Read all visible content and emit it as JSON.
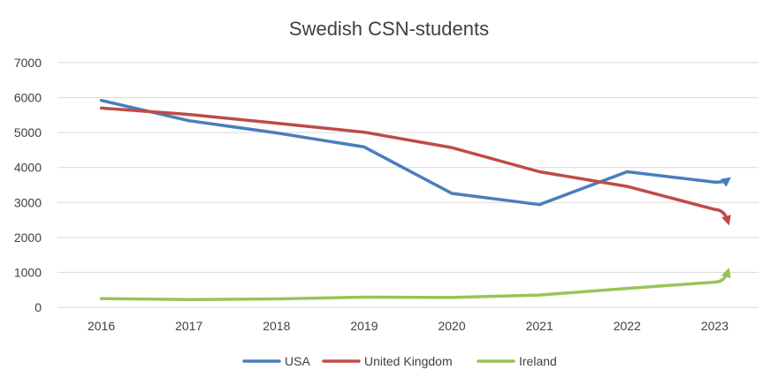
{
  "chart_data": {
    "type": "line",
    "title": "Swedish CSN-students",
    "xlabel": "",
    "ylabel": "",
    "categories": [
      "2016",
      "2017",
      "2018",
      "2019",
      "2020",
      "2021",
      "2022",
      "2023"
    ],
    "ylim": [
      0,
      7000
    ],
    "yticks": [
      0,
      1000,
      2000,
      3000,
      4000,
      5000,
      6000,
      7000
    ],
    "grid": true,
    "legend_position": "bottom",
    "series": [
      {
        "name": "USA",
        "color": "#4a7ebb",
        "values": [
          5920,
          5340,
          4990,
          4590,
          3260,
          2940,
          3880,
          3580
        ],
        "end_arrow": 3660
      },
      {
        "name": "United Kingdom",
        "color": "#be4b48",
        "values": [
          5700,
          5520,
          5270,
          5010,
          4570,
          3880,
          3460,
          2800
        ],
        "end_arrow": 2450
      },
      {
        "name": "Ireland",
        "color": "#98c457",
        "values": [
          250,
          220,
          240,
          290,
          280,
          350,
          540,
          720
        ],
        "end_arrow": 1030
      }
    ]
  }
}
